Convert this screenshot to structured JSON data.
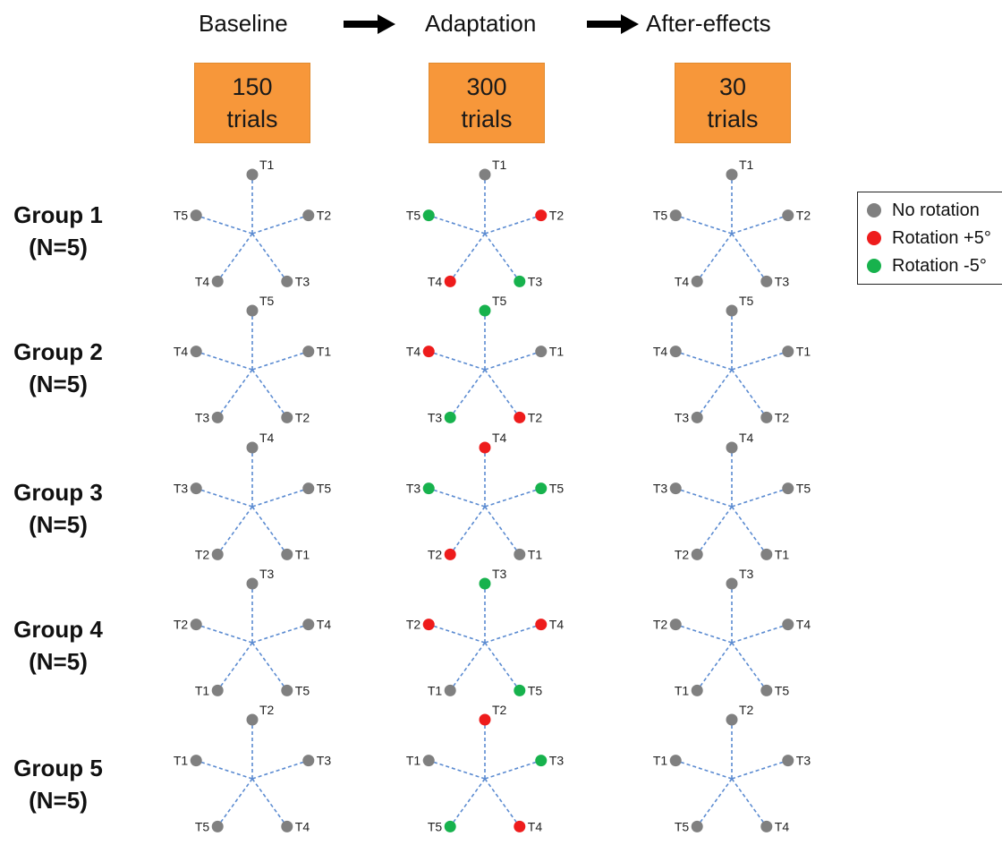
{
  "colors": {
    "none": "#808080",
    "plus": "#EE1C1C",
    "minus": "#17B24D",
    "line": "#5B8BD1",
    "box": "#F7973A"
  },
  "phases": [
    {
      "title": "Baseline",
      "count": "150",
      "unit": "trials"
    },
    {
      "title": "Adaptation",
      "count": "300",
      "unit": "trials"
    },
    {
      "title": "After-effects",
      "count": "30",
      "unit": "trials"
    }
  ],
  "groups": [
    {
      "name": "Group 1",
      "n": "(N=5)",
      "targets": [
        "T1",
        "T2",
        "T3",
        "T4",
        "T5"
      ],
      "adaptation": [
        "none",
        "plus",
        "minus",
        "plus",
        "minus"
      ]
    },
    {
      "name": "Group 2",
      "n": "(N=5)",
      "targets": [
        "T5",
        "T1",
        "T2",
        "T3",
        "T4"
      ],
      "adaptation": [
        "minus",
        "none",
        "plus",
        "minus",
        "plus"
      ]
    },
    {
      "name": "Group 3",
      "n": "(N=5)",
      "targets": [
        "T4",
        "T5",
        "T1",
        "T2",
        "T3"
      ],
      "adaptation": [
        "plus",
        "minus",
        "none",
        "plus",
        "minus"
      ]
    },
    {
      "name": "Group 4",
      "n": "(N=5)",
      "targets": [
        "T3",
        "T4",
        "T5",
        "T1",
        "T2"
      ],
      "adaptation": [
        "minus",
        "plus",
        "minus",
        "none",
        "plus"
      ]
    },
    {
      "name": "Group 5",
      "n": "(N=5)",
      "targets": [
        "T2",
        "T3",
        "T4",
        "T5",
        "T1"
      ],
      "adaptation": [
        "plus",
        "minus",
        "plus",
        "minus",
        "none"
      ]
    }
  ],
  "legend": [
    {
      "label": "No rotation",
      "kind": "none"
    },
    {
      "label": "Rotation +5°",
      "kind": "plus"
    },
    {
      "label": "Rotation -5°",
      "kind": "minus"
    }
  ]
}
